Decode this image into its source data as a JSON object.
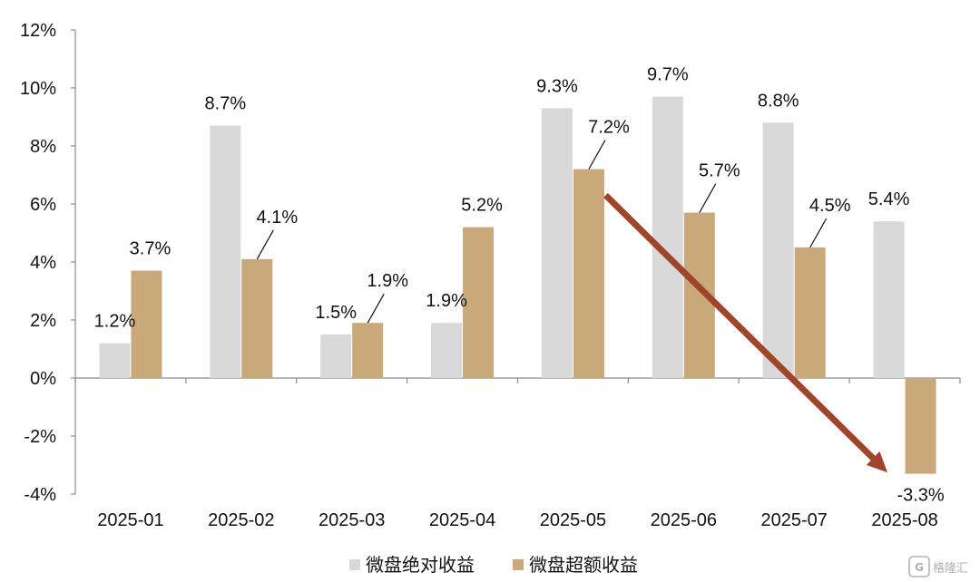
{
  "chart_data": {
    "type": "bar",
    "categories": [
      "2025-01",
      "2025-02",
      "2025-03",
      "2025-04",
      "2025-05",
      "2025-06",
      "2025-07",
      "2025-08"
    ],
    "series": [
      {
        "name": "微盘绝对收益",
        "color": "#d9d9d9",
        "values": [
          1.2,
          8.7,
          1.5,
          1.9,
          9.3,
          9.7,
          8.8,
          5.4
        ],
        "labels": [
          "1.2%",
          "8.7%",
          "1.5%",
          "1.9%",
          "9.3%",
          "9.7%",
          "8.8%",
          "5.4%"
        ]
      },
      {
        "name": "微盘超额收益",
        "color": "#c9a87a",
        "values": [
          3.7,
          4.1,
          1.9,
          5.2,
          7.2,
          5.7,
          4.5,
          -3.3
        ],
        "labels": [
          "3.7%",
          "4.1%",
          "1.9%",
          "5.2%",
          "7.2%",
          "5.7%",
          "4.5%",
          "-3.3%"
        ]
      }
    ],
    "ylim": [
      -4,
      12
    ],
    "yticks": [
      -4,
      -2,
      0,
      2,
      4,
      6,
      8,
      10,
      12
    ],
    "ytick_labels": [
      "-4%",
      "-2%",
      "0%",
      "2%",
      "4%",
      "6%",
      "8%",
      "10%",
      "12%"
    ],
    "grid": false,
    "legend": "bottom-center",
    "annotation": {
      "type": "arrow",
      "color": "#a0442a",
      "from": {
        "category": "2025-05",
        "value": 6.3
      },
      "to": {
        "category": "2025-08",
        "value": -3.1
      }
    }
  },
  "watermark": {
    "icon": "gelonghui-logo-icon",
    "text": "格隆汇"
  }
}
